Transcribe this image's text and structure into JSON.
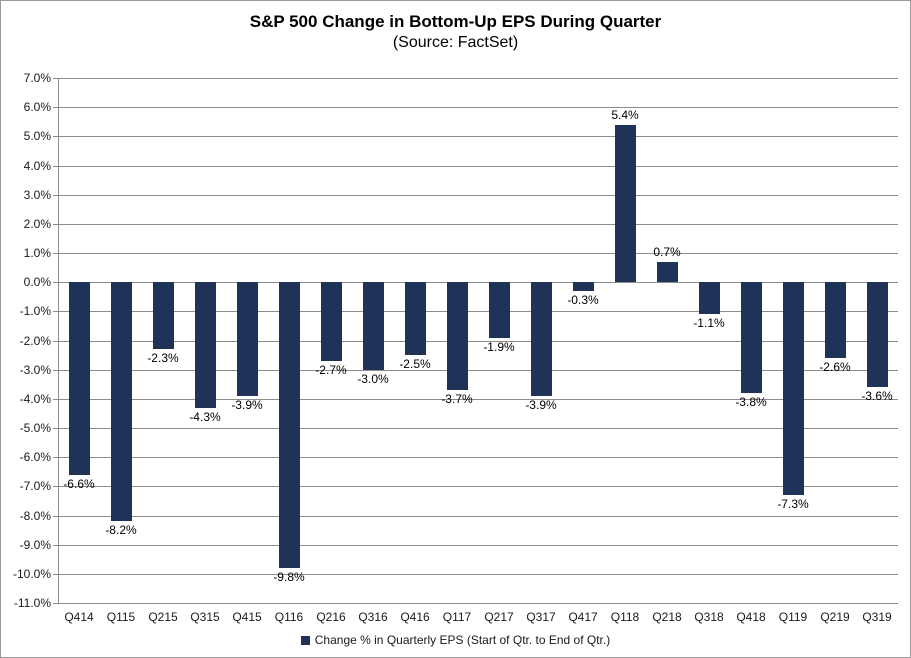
{
  "chart_data": {
    "type": "bar",
    "title": "S&P 500 Change in Bottom-Up EPS During Quarter",
    "subtitle": "(Source: FactSet)",
    "categories": [
      "Q414",
      "Q115",
      "Q215",
      "Q315",
      "Q415",
      "Q116",
      "Q216",
      "Q316",
      "Q416",
      "Q117",
      "Q217",
      "Q317",
      "Q417",
      "Q118",
      "Q218",
      "Q318",
      "Q418",
      "Q119",
      "Q219",
      "Q319"
    ],
    "values": [
      -6.6,
      -8.2,
      -2.3,
      -4.3,
      -3.9,
      -9.8,
      -2.7,
      -3.0,
      -2.5,
      -3.7,
      -1.9,
      -3.9,
      -0.3,
      5.4,
      0.7,
      -1.1,
      -3.8,
      -7.3,
      -2.6,
      -3.6
    ],
    "data_labels": [
      "-6.6%",
      "-8.2%",
      "-2.3%",
      "-4.3%",
      "-3.9%",
      "-9.8%",
      "-2.7%",
      "-3.0%",
      "-2.5%",
      "-3.7%",
      "-1.9%",
      "-3.9%",
      "-0.3%",
      "5.4%",
      "0.7%",
      "-1.1%",
      "-3.8%",
      "-7.3%",
      "-2.6%",
      "-3.6%"
    ],
    "series_name": "Change % in Quarterly EPS (Start of Qtr. to End of Qtr.)",
    "xlabel": "",
    "ylabel": "",
    "ylim": [
      -11,
      7
    ],
    "ytick_step": 1,
    "ytick_labels": [
      "7.0%",
      "6.0%",
      "5.0%",
      "4.0%",
      "3.0%",
      "2.0%",
      "1.0%",
      "0.0%",
      "-1.0%",
      "-2.0%",
      "-3.0%",
      "-4.0%",
      "-5.0%",
      "-6.0%",
      "-7.0%",
      "-8.0%",
      "-9.0%",
      "-10.0%",
      "-11.0%"
    ],
    "grid": true,
    "legend_position": "bottom",
    "bar_color": "#1f3258",
    "gridline_color": "#8c8c8c"
  }
}
